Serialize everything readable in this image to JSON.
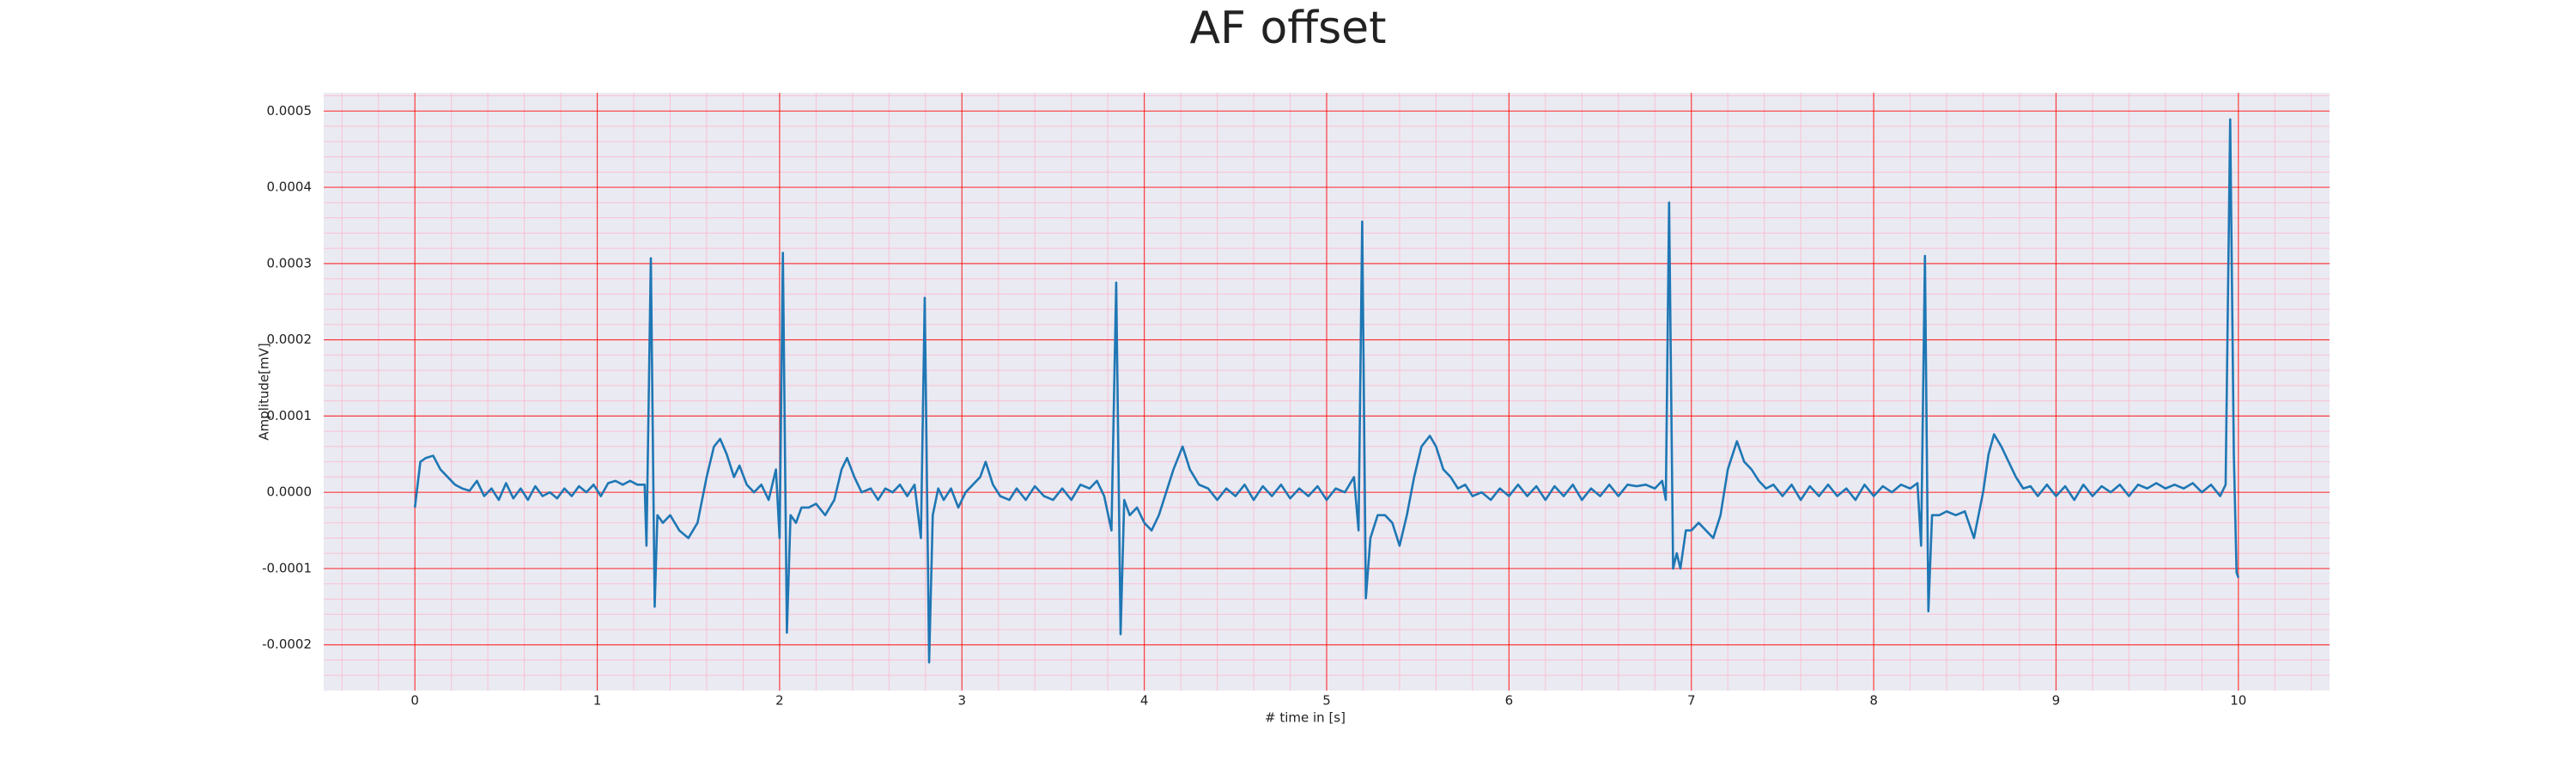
{
  "chart_data": {
    "type": "line",
    "title": "AF offset",
    "x_label": "# time in [s]",
    "y_label": "Amplitude[mV]",
    "color": "#1f77b4",
    "grid": true,
    "minor_grid": true,
    "grid_color": "#ff0000",
    "minor_grid_color": "#ffb0c8",
    "background": "#eaeaf2",
    "xlim": [
      -0.5,
      10.5
    ],
    "ylim": [
      -0.00026,
      0.000524
    ],
    "xticks": [
      0,
      1,
      2,
      3,
      4,
      5,
      6,
      7,
      8,
      9,
      10
    ],
    "yticks": [
      -0.0002,
      -0.0001,
      {
        "value": 0,
        "label": "0.0000"
      },
      0.0001,
      0.0002,
      0.0003,
      0.0004,
      0.0005
    ],
    "x": [
      0,
      0.03,
      0.06,
      0.1,
      0.14,
      0.18,
      0.22,
      0.26,
      0.3,
      0.34,
      0.38,
      0.42,
      0.46,
      0.5,
      0.54,
      0.58,
      0.62,
      0.66,
      0.7,
      0.74,
      0.78,
      0.82,
      0.86,
      0.9,
      0.94,
      0.98,
      1.02,
      1.06,
      1.1,
      1.14,
      1.18,
      1.22,
      1.26,
      1.27,
      1.294,
      1.315,
      1.33,
      1.36,
      1.4,
      1.45,
      1.5,
      1.55,
      1.6,
      1.64,
      1.674,
      1.71,
      1.75,
      1.78,
      1.82,
      1.86,
      1.9,
      1.94,
      1.98,
      2.0,
      2.018,
      2.04,
      2.06,
      2.09,
      2.12,
      2.16,
      2.2,
      2.25,
      2.3,
      2.34,
      2.37,
      2.41,
      2.45,
      2.5,
      2.54,
      2.58,
      2.62,
      2.66,
      2.7,
      2.74,
      2.775,
      2.796,
      2.82,
      2.84,
      2.87,
      2.9,
      2.94,
      2.98,
      3.02,
      3.06,
      3.1,
      3.13,
      3.17,
      3.21,
      3.26,
      3.3,
      3.35,
      3.4,
      3.45,
      3.5,
      3.55,
      3.6,
      3.65,
      3.7,
      3.74,
      3.78,
      3.82,
      3.846,
      3.87,
      3.89,
      3.92,
      3.96,
      4.0,
      4.04,
      4.08,
      4.12,
      4.16,
      4.21,
      4.25,
      4.3,
      4.35,
      4.4,
      4.45,
      4.5,
      4.55,
      4.6,
      4.65,
      4.7,
      4.75,
      4.8,
      4.85,
      4.9,
      4.95,
      5.0,
      5.05,
      5.1,
      5.15,
      5.175,
      5.195,
      5.215,
      5.24,
      5.28,
      5.32,
      5.36,
      5.4,
      5.44,
      5.48,
      5.52,
      5.566,
      5.6,
      5.64,
      5.68,
      5.72,
      5.76,
      5.8,
      5.85,
      5.9,
      5.95,
      6.0,
      6.05,
      6.1,
      6.15,
      6.2,
      6.25,
      6.3,
      6.35,
      6.4,
      6.45,
      6.5,
      6.55,
      6.6,
      6.65,
      6.7,
      6.75,
      6.8,
      6.84,
      6.86,
      6.878,
      6.9,
      6.92,
      6.94,
      6.97,
      7.0,
      7.04,
      7.08,
      7.12,
      7.16,
      7.2,
      7.25,
      7.29,
      7.33,
      7.37,
      7.41,
      7.45,
      7.5,
      7.55,
      7.6,
      7.65,
      7.7,
      7.75,
      7.8,
      7.85,
      7.9,
      7.95,
      8.0,
      8.05,
      8.1,
      8.15,
      8.2,
      8.24,
      8.26,
      8.281,
      8.3,
      8.32,
      8.36,
      8.4,
      8.45,
      8.5,
      8.55,
      8.6,
      8.63,
      8.66,
      8.7,
      8.74,
      8.78,
      8.82,
      8.86,
      8.9,
      8.95,
      9.0,
      9.05,
      9.1,
      9.15,
      9.2,
      9.25,
      9.3,
      9.35,
      9.4,
      9.45,
      9.5,
      9.55,
      9.6,
      9.65,
      9.7,
      9.75,
      9.8,
      9.85,
      9.9,
      9.93,
      9.955,
      9.975,
      9.99,
      10.0
    ],
    "values": [
      -2e-05,
      4e-05,
      4.5e-05,
      4.8e-05,
      3e-05,
      2e-05,
      1e-05,
      5e-06,
      2e-06,
      1.5e-05,
      -5e-06,
      5e-06,
      -1e-05,
      1.2e-05,
      -8e-06,
      5e-06,
      -1e-05,
      8e-06,
      -5e-06,
      0,
      -8e-06,
      5e-06,
      -5e-06,
      8e-06,
      0,
      1e-05,
      -5e-06,
      1.2e-05,
      1.5e-05,
      1e-05,
      1.5e-05,
      1e-05,
      1e-05,
      -7e-05,
      0.000307,
      -0.00015,
      -3e-05,
      -4e-05,
      -3e-05,
      -5e-05,
      -6e-05,
      -4e-05,
      2e-05,
      6e-05,
      7e-05,
      5e-05,
      2e-05,
      3.5e-05,
      1e-05,
      0,
      1e-05,
      -1e-05,
      3e-05,
      -6e-05,
      0.000314,
      -0.000184,
      -3e-05,
      -4e-05,
      -2e-05,
      -2e-05,
      -1.5e-05,
      -3e-05,
      -1e-05,
      3e-05,
      4.5e-05,
      2e-05,
      0,
      5e-06,
      -1e-05,
      5e-06,
      0,
      1e-05,
      -5e-06,
      1e-05,
      -6e-05,
      0.000255,
      -0.000223,
      -3e-05,
      5e-06,
      -1e-05,
      5e-06,
      -2e-05,
      0,
      1e-05,
      2e-05,
      4e-05,
      1e-05,
      -5e-06,
      -1e-05,
      5e-06,
      -1e-05,
      8e-06,
      -5e-06,
      -1e-05,
      5e-06,
      -1e-05,
      1e-05,
      5e-06,
      1.5e-05,
      -5e-06,
      -5e-05,
      0.000275,
      -0.000186,
      -1e-05,
      -3e-05,
      -2e-05,
      -4e-05,
      -5e-05,
      -3e-05,
      0,
      3e-05,
      6e-05,
      3e-05,
      1e-05,
      5e-06,
      -1e-05,
      5e-06,
      -5e-06,
      1e-05,
      -1e-05,
      8e-06,
      -5e-06,
      1e-05,
      -8e-06,
      5e-06,
      -5e-06,
      8e-06,
      -1e-05,
      5e-06,
      0,
      2e-05,
      -5e-05,
      0.000355,
      -0.000139,
      -6e-05,
      -3e-05,
      -3e-05,
      -4e-05,
      -7e-05,
      -3e-05,
      2e-05,
      6e-05,
      7.4e-05,
      6e-05,
      3e-05,
      2e-05,
      5e-06,
      1e-05,
      -5e-06,
      0,
      -1e-05,
      5e-06,
      -5e-06,
      1e-05,
      -5e-06,
      8e-06,
      -1e-05,
      8e-06,
      -5e-06,
      1e-05,
      -1e-05,
      5e-06,
      -5e-06,
      1e-05,
      -5e-06,
      1e-05,
      8e-06,
      1e-05,
      5e-06,
      1.5e-05,
      -1e-05,
      0.00038,
      -0.0001,
      -8e-05,
      -0.0001,
      -5e-05,
      -5e-05,
      -4e-05,
      -5e-05,
      -6e-05,
      -3e-05,
      3e-05,
      6.7e-05,
      4e-05,
      3e-05,
      1.5e-05,
      5e-06,
      1e-05,
      -5e-06,
      1e-05,
      -1e-05,
      8e-06,
      -5e-06,
      1e-05,
      -5e-06,
      5e-06,
      -1e-05,
      1e-05,
      -5e-06,
      8e-06,
      0,
      1e-05,
      5e-06,
      1.2e-05,
      -7e-05,
      0.00031,
      -0.000156,
      -3e-05,
      -3e-05,
      -2.5e-05,
      -3e-05,
      -2.5e-05,
      -6e-05,
      0,
      5e-05,
      7.6e-05,
      6e-05,
      4e-05,
      2e-05,
      5e-06,
      8e-06,
      -5e-06,
      1e-05,
      -5e-06,
      8e-06,
      -1e-05,
      1e-05,
      -5e-06,
      8e-06,
      0,
      1e-05,
      -5e-06,
      1e-05,
      5e-06,
      1.2e-05,
      5e-06,
      1e-05,
      5e-06,
      1.2e-05,
      0,
      1e-05,
      -5e-06,
      1e-05,
      0.000489,
      5e-05,
      -0.000105,
      -0.000112
    ]
  }
}
